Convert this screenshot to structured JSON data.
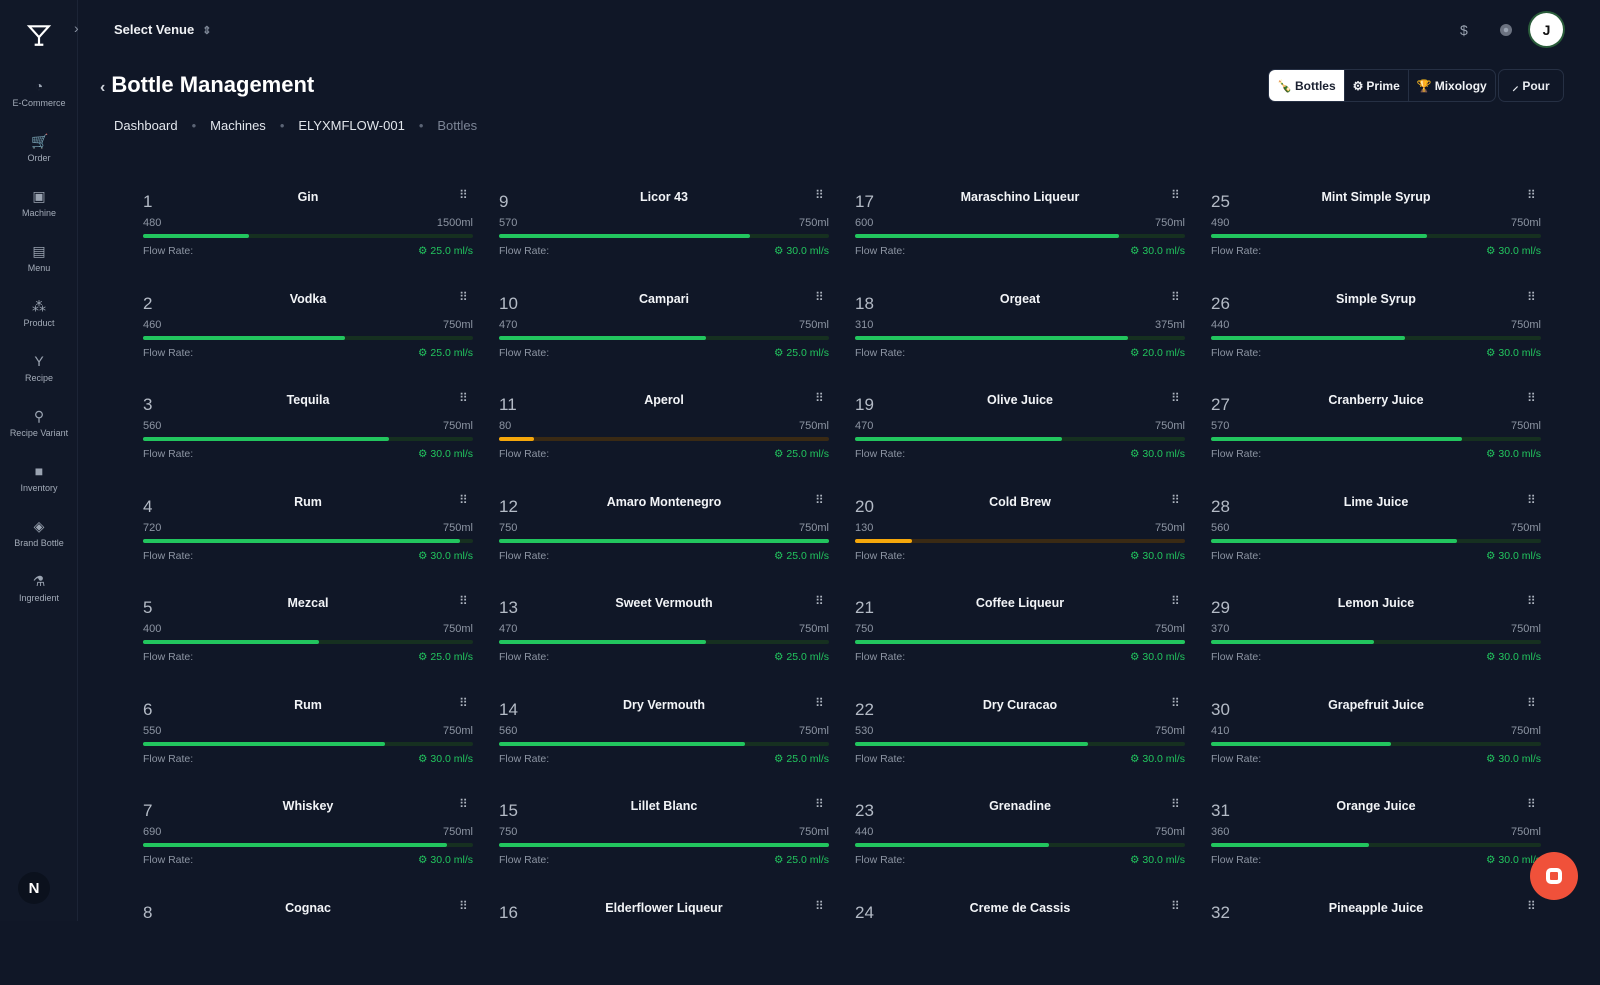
{
  "header": {
    "venue_label": "Select Venue",
    "currency_symbol": "$",
    "avatar_initial": "J"
  },
  "sidebar": {
    "items": [
      {
        "label": "E-Commerce",
        "icon": "gauge-icon"
      },
      {
        "label": "Order",
        "icon": "cart-icon"
      },
      {
        "label": "Machine",
        "icon": "machine-icon"
      },
      {
        "label": "Menu",
        "icon": "menu-icon"
      },
      {
        "label": "Product",
        "icon": "product-icon"
      },
      {
        "label": "Recipe",
        "icon": "cocktail-icon"
      },
      {
        "label": "Recipe Variant",
        "icon": "glasses-icon"
      },
      {
        "label": "Inventory",
        "icon": "box-icon"
      },
      {
        "label": "Brand Bottle",
        "icon": "bottle-icon"
      },
      {
        "label": "Ingredient",
        "icon": "flask-icon"
      }
    ],
    "footer_badge": "N"
  },
  "page": {
    "title": "Bottle Management",
    "breadcrumb": [
      "Dashboard",
      "Machines",
      "ELYXMFLOW-001",
      "Bottles"
    ],
    "tabs": [
      {
        "label": "Bottles",
        "active": true
      },
      {
        "label": "Prime"
      },
      {
        "label": "Mixology"
      }
    ],
    "pour_label": "Pour",
    "flow_rate_label": "Flow Rate:"
  },
  "colors": {
    "ok": "#22c55e",
    "low": "#f5a70b",
    "accent": "#f0513a"
  },
  "bottles": [
    {
      "n": "1",
      "name": "Gin",
      "current": 480,
      "capacity": "1500ml",
      "cap": 1500,
      "flow": "25.0 ml/s"
    },
    {
      "n": "2",
      "name": "Vodka",
      "current": 460,
      "capacity": "750ml",
      "cap": 750,
      "flow": "25.0 ml/s"
    },
    {
      "n": "3",
      "name": "Tequila",
      "current": 560,
      "capacity": "750ml",
      "cap": 750,
      "flow": "30.0 ml/s"
    },
    {
      "n": "4",
      "name": "Rum",
      "current": 720,
      "capacity": "750ml",
      "cap": 750,
      "flow": "30.0 ml/s"
    },
    {
      "n": "5",
      "name": "Mezcal",
      "current": 400,
      "capacity": "750ml",
      "cap": 750,
      "flow": "25.0 ml/s"
    },
    {
      "n": "6",
      "name": "Rum",
      "current": 550,
      "capacity": "750ml",
      "cap": 750,
      "flow": "30.0 ml/s"
    },
    {
      "n": "7",
      "name": "Whiskey",
      "current": 690,
      "capacity": "750ml",
      "cap": 750,
      "flow": "30.0 ml/s"
    },
    {
      "n": "8",
      "name": "Cognac"
    },
    {
      "n": "9",
      "name": "Licor 43",
      "current": 570,
      "capacity": "750ml",
      "cap": 750,
      "flow": "30.0 ml/s"
    },
    {
      "n": "10",
      "name": "Campari",
      "current": 470,
      "capacity": "750ml",
      "cap": 750,
      "flow": "25.0 ml/s"
    },
    {
      "n": "11",
      "name": "Aperol",
      "current": 80,
      "capacity": "750ml",
      "cap": 750,
      "flow": "25.0 ml/s",
      "low": true
    },
    {
      "n": "12",
      "name": "Amaro Montenegro",
      "current": 750,
      "capacity": "750ml",
      "cap": 750,
      "flow": "25.0 ml/s"
    },
    {
      "n": "13",
      "name": "Sweet Vermouth",
      "current": 470,
      "capacity": "750ml",
      "cap": 750,
      "flow": "25.0 ml/s"
    },
    {
      "n": "14",
      "name": "Dry Vermouth",
      "current": 560,
      "capacity": "750ml",
      "cap": 750,
      "flow": "25.0 ml/s"
    },
    {
      "n": "15",
      "name": "Lillet Blanc",
      "current": 750,
      "capacity": "750ml",
      "cap": 750,
      "flow": "25.0 ml/s"
    },
    {
      "n": "16",
      "name": "Elderflower Liqueur"
    },
    {
      "n": "17",
      "name": "Maraschino Liqueur",
      "current": 600,
      "capacity": "750ml",
      "cap": 750,
      "flow": "30.0 ml/s"
    },
    {
      "n": "18",
      "name": "Orgeat",
      "current": 310,
      "capacity": "375ml",
      "cap": 375,
      "flow": "20.0 ml/s"
    },
    {
      "n": "19",
      "name": "Olive Juice",
      "current": 470,
      "capacity": "750ml",
      "cap": 750,
      "flow": "30.0 ml/s"
    },
    {
      "n": "20",
      "name": "Cold Brew",
      "current": 130,
      "capacity": "750ml",
      "cap": 750,
      "flow": "30.0 ml/s",
      "low": true
    },
    {
      "n": "21",
      "name": "Coffee Liqueur",
      "current": 750,
      "capacity": "750ml",
      "cap": 750,
      "flow": "30.0 ml/s"
    },
    {
      "n": "22",
      "name": "Dry Curacao",
      "current": 530,
      "capacity": "750ml",
      "cap": 750,
      "flow": "30.0 ml/s"
    },
    {
      "n": "23",
      "name": "Grenadine",
      "current": 440,
      "capacity": "750ml",
      "cap": 750,
      "flow": "30.0 ml/s"
    },
    {
      "n": "24",
      "name": "Creme de Cassis"
    },
    {
      "n": "25",
      "name": "Mint Simple Syrup",
      "current": 490,
      "capacity": "750ml",
      "cap": 750,
      "flow": "30.0 ml/s"
    },
    {
      "n": "26",
      "name": "Simple Syrup",
      "current": 440,
      "capacity": "750ml",
      "cap": 750,
      "flow": "30.0 ml/s"
    },
    {
      "n": "27",
      "name": "Cranberry Juice",
      "current": 570,
      "capacity": "750ml",
      "cap": 750,
      "flow": "30.0 ml/s"
    },
    {
      "n": "28",
      "name": "Lime Juice",
      "current": 560,
      "capacity": "750ml",
      "cap": 750,
      "flow": "30.0 ml/s"
    },
    {
      "n": "29",
      "name": "Lemon Juice",
      "current": 370,
      "capacity": "750ml",
      "cap": 750,
      "flow": "30.0 ml/s"
    },
    {
      "n": "30",
      "name": "Grapefruit Juice",
      "current": 410,
      "capacity": "750ml",
      "cap": 750,
      "flow": "30.0 ml/s"
    },
    {
      "n": "31",
      "name": "Orange Juice",
      "current": 360,
      "capacity": "750ml",
      "cap": 750,
      "flow": "30.0 ml/s"
    },
    {
      "n": "32",
      "name": "Pineapple Juice"
    }
  ]
}
